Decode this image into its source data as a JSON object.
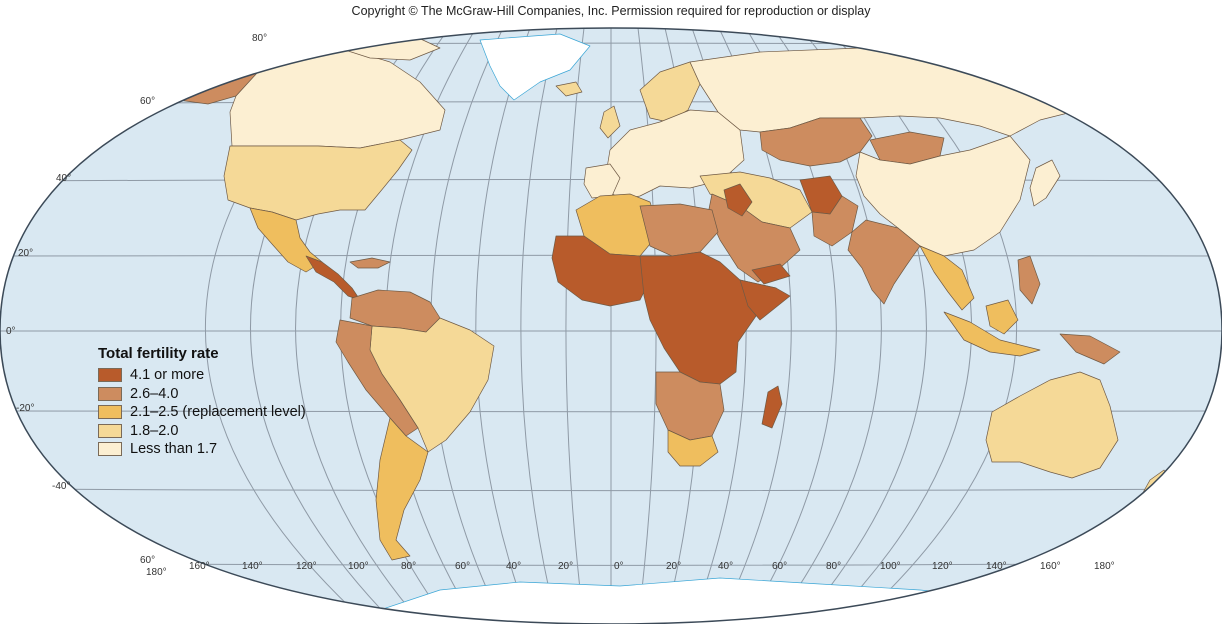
{
  "copyright": "Copyright © The McGraw-Hill Companies, Inc. Permission required for reproduction or display",
  "legend": {
    "title": "Total fertility rate",
    "classes": [
      {
        "label": "4.1 or more",
        "color": "#b85b2b"
      },
      {
        "label": "2.6–4.0",
        "color": "#cd8c5f"
      },
      {
        "label": "2.1–2.5 (replacement level)",
        "color": "#efbe5e"
      },
      {
        "label": "1.8–2.0",
        "color": "#f5d997"
      },
      {
        "label": "Less than 1.7",
        "color": "#fcefd2"
      }
    ]
  },
  "colors": {
    "ocean": "#d9e8f2",
    "grid": "#8f9aa6",
    "coast": "#3aa6d6",
    "border": "#6f5a45",
    "outline": "#3c4a58"
  },
  "graticule": {
    "lat_labels": [
      "80°",
      "60°",
      "40°",
      "20°",
      "0°",
      "-20°",
      "-40°",
      "60°"
    ],
    "lon_labels": [
      "180°",
      "160°",
      "140°",
      "120°",
      "100°",
      "80°",
      "60°",
      "40°",
      "20°",
      "0°",
      "20°",
      "40°",
      "60°",
      "80°",
      "100°",
      "120°",
      "140°",
      "160°",
      "180°"
    ]
  }
}
